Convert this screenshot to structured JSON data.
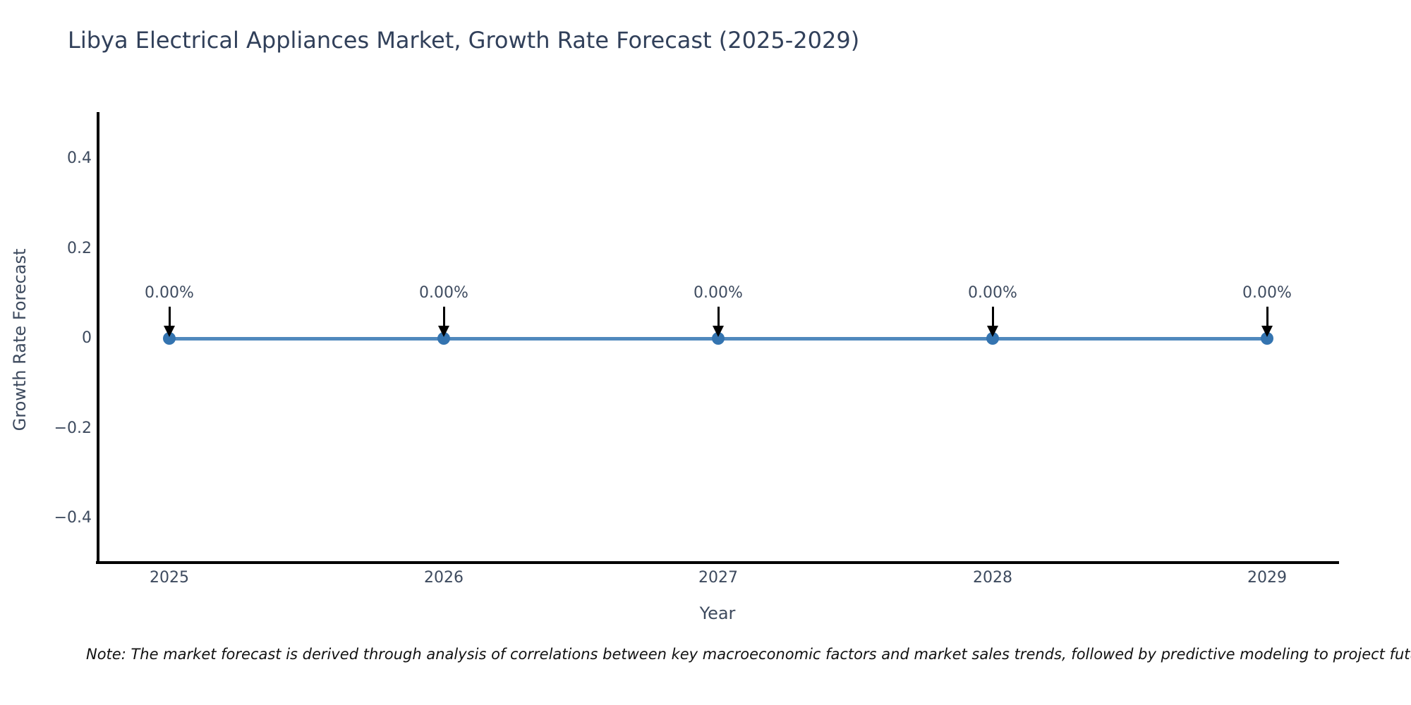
{
  "chart_data": {
    "type": "line",
    "title": "Libya Electrical Appliances Market, Growth Rate Forecast (2025-2029)",
    "xlabel": "Year",
    "ylabel": "Growth Rate Forecast",
    "x": [
      2025,
      2026,
      2027,
      2028,
      2029
    ],
    "series": [
      {
        "name": "Growth Rate Forecast",
        "values": [
          0,
          0,
          0,
          0,
          0
        ]
      }
    ],
    "point_labels": [
      "0.00%",
      "0.00%",
      "0.00%",
      "0.00%",
      "0.00%"
    ],
    "xticks": [
      "2025",
      "2026",
      "2027",
      "2028",
      "2029"
    ],
    "yticks": {
      "values": [
        0.4,
        0.2,
        0,
        -0.2,
        -0.4
      ],
      "labels": [
        "0.4",
        "0.2",
        "0",
        "−0.2",
        "−0.4"
      ]
    },
    "ylim": [
      -0.5,
      0.5
    ],
    "grid": false,
    "legend": false,
    "annotation_arrows": "down-to-point",
    "colors": {
      "line": "#5089bd",
      "marker": "#3474b0",
      "arrow": "#000000",
      "axis": "#000000",
      "title_text": "#31405a",
      "axis_text": "#3d4a5e",
      "annotation_text": "#3f4c60",
      "note_text": "#111111",
      "background": "#ffffff"
    }
  },
  "note": "Note: The market forecast is derived through analysis of correlations between key macroeconomic factors and market sales trends, followed by predictive modeling to project future sales."
}
